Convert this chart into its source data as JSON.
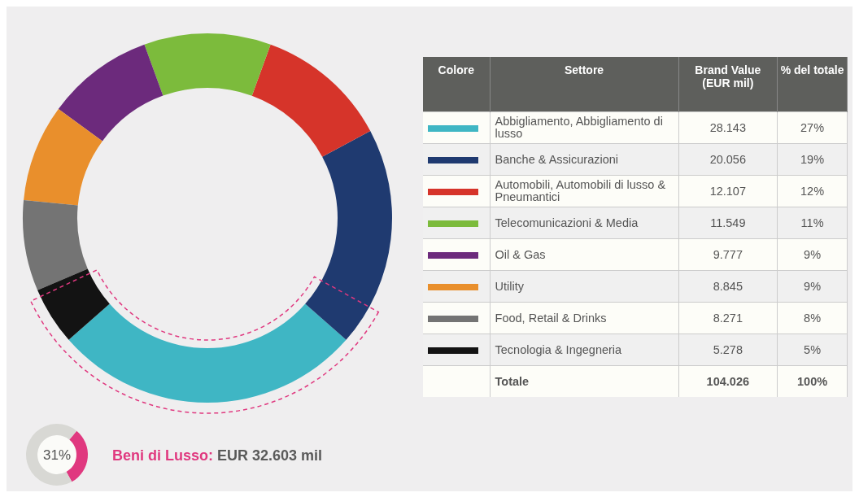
{
  "chart_data": [
    {
      "type": "donut",
      "categories": [
        "Abbigliamento, Abbigliamento di lusso",
        "Banche & Assicurazioni",
        "Automobili, Automobili di lusso & Pneumantici",
        "Telecomunicazioni & Media",
        "Oil & Gas",
        "Utility",
        "Food, Retail & Drinks",
        "Tecnologia & Ingegneria"
      ],
      "values": [
        28.143,
        20.056,
        12.107,
        11.549,
        9.777,
        8.845,
        8.271,
        5.278
      ],
      "colors": [
        "#3fb6c4",
        "#1f3a70",
        "#d6342a",
        "#7cbb3c",
        "#6c2a7c",
        "#e98f2c",
        "#747474",
        "#131313"
      ],
      "value_labels": [
        "28.143",
        "20.056",
        "12.107",
        "11.549",
        "9.777",
        "8.845",
        "8.271",
        "5.278"
      ],
      "legend": "right",
      "annotations": [
        "Colore",
        "Settore",
        "Brand Value (EUR mil)",
        "% del totale",
        "Totale",
        "104.026",
        "100%",
        "27%",
        "19%",
        "12%",
        "11%",
        "9%",
        "9%",
        "8%",
        "5%"
      ]
    },
    {
      "type": "donut",
      "categories": [
        null,
        null
      ],
      "values": [
        31,
        69
      ],
      "colors": [
        "#e0387f",
        "#d8d8d4"
      ],
      "title": "Beni di Lusso:",
      "annotations": [
        "EUR 32.603 mil",
        "31%"
      ]
    }
  ]
}
